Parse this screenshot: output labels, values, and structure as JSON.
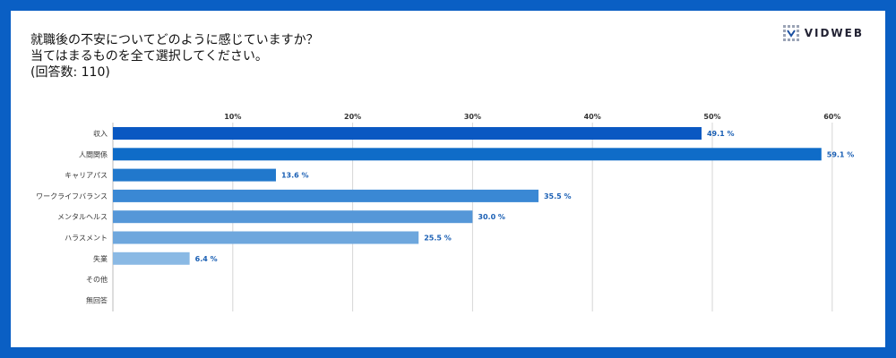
{
  "brand": {
    "name": "VIDWEB"
  },
  "chart_data": {
    "type": "bar",
    "orientation": "horizontal",
    "title_lines": [
      "就職後の不安についてどのように感じていますか？",
      "当てはまるものを全て選択してください。",
      "(回答数: 110)"
    ],
    "categories": [
      "収入",
      "人間関係",
      "キャリアパス",
      "ワークライフバランス",
      "メンタルヘルス",
      "ハラスメント",
      "失業",
      "その他",
      "無回答"
    ],
    "values": [
      49.1,
      59.1,
      13.6,
      35.5,
      30.0,
      25.5,
      6.4,
      0,
      0
    ],
    "value_labels": [
      "49.1 %",
      "59.1 %",
      "13.6 %",
      "35.5 %",
      "30.0 %",
      "25.5 %",
      "6.4 %",
      "",
      ""
    ],
    "xlim": [
      0,
      60
    ],
    "xticks": [
      10,
      20,
      30,
      40,
      50,
      60
    ],
    "xtick_labels": [
      "10%",
      "20%",
      "30%",
      "40%",
      "50%",
      "60%"
    ],
    "colors": [
      "#0a58c2",
      "#0f6cc8",
      "#2178cc",
      "#3a88d4",
      "#5597d8",
      "#6ea7dd",
      "#8ab9e4",
      "#a6c9ea",
      "#bcd6ee"
    ],
    "grid": true
  }
}
